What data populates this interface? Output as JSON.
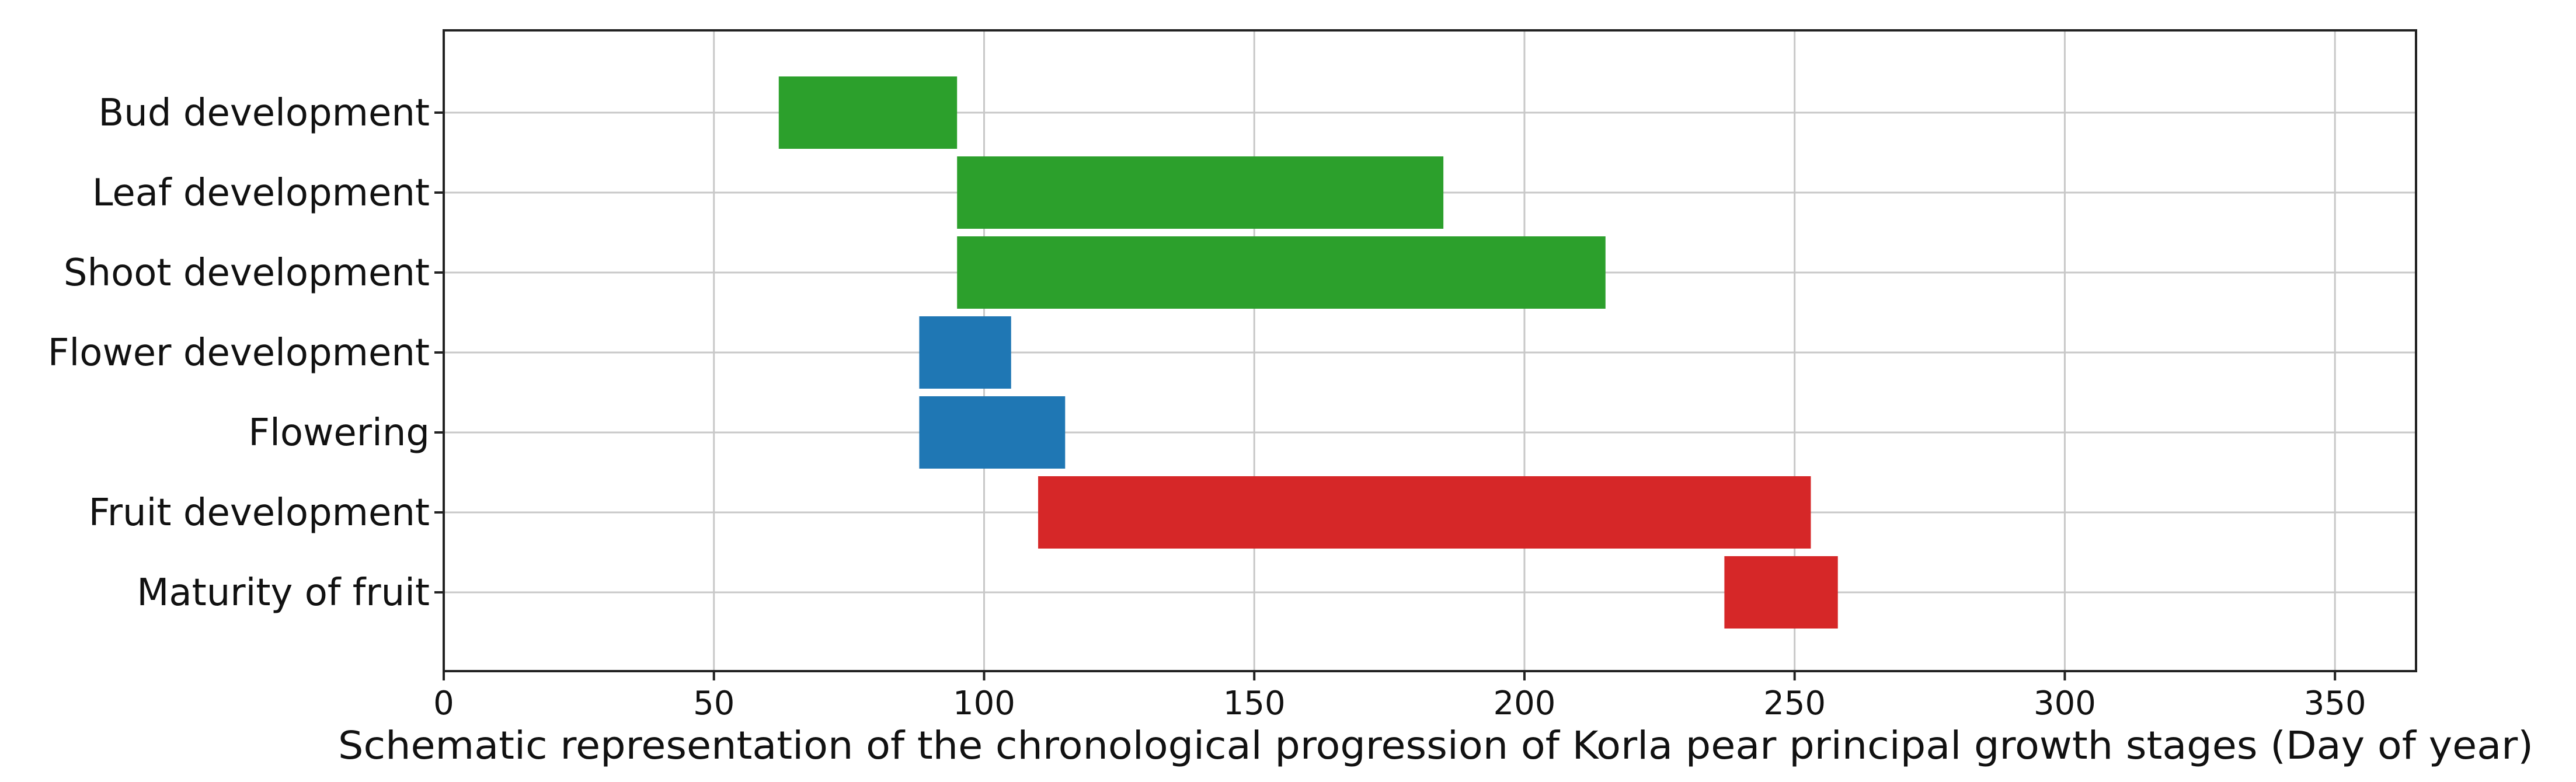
{
  "chart_data": {
    "type": "bar",
    "orientation": "horizontal-range",
    "title": "",
    "xlabel": "Schematic representation of the chronological progression of Korla pear principal growth stages (Day of year)",
    "ylabel": "",
    "xlim": [
      0,
      365
    ],
    "xticks": [
      "0",
      "50",
      "100",
      "150",
      "200",
      "250",
      "300",
      "350"
    ],
    "grid": true,
    "categories": [
      "Bud development",
      "Leaf development",
      "Shoot development",
      "Flower development",
      "Flowering",
      "Fruit development",
      "Maturity of fruit"
    ],
    "ranges": [
      {
        "start": 62,
        "end": 95,
        "color": "#2ca02c"
      },
      {
        "start": 95,
        "end": 185,
        "color": "#2ca02c"
      },
      {
        "start": 95,
        "end": 215,
        "color": "#2ca02c"
      },
      {
        "start": 88,
        "end": 105,
        "color": "#1f77b4"
      },
      {
        "start": 88,
        "end": 115,
        "color": "#1f77b4"
      },
      {
        "start": 110,
        "end": 253,
        "color": "#d62728"
      },
      {
        "start": 237,
        "end": 258,
        "color": "#d62728"
      }
    ]
  }
}
